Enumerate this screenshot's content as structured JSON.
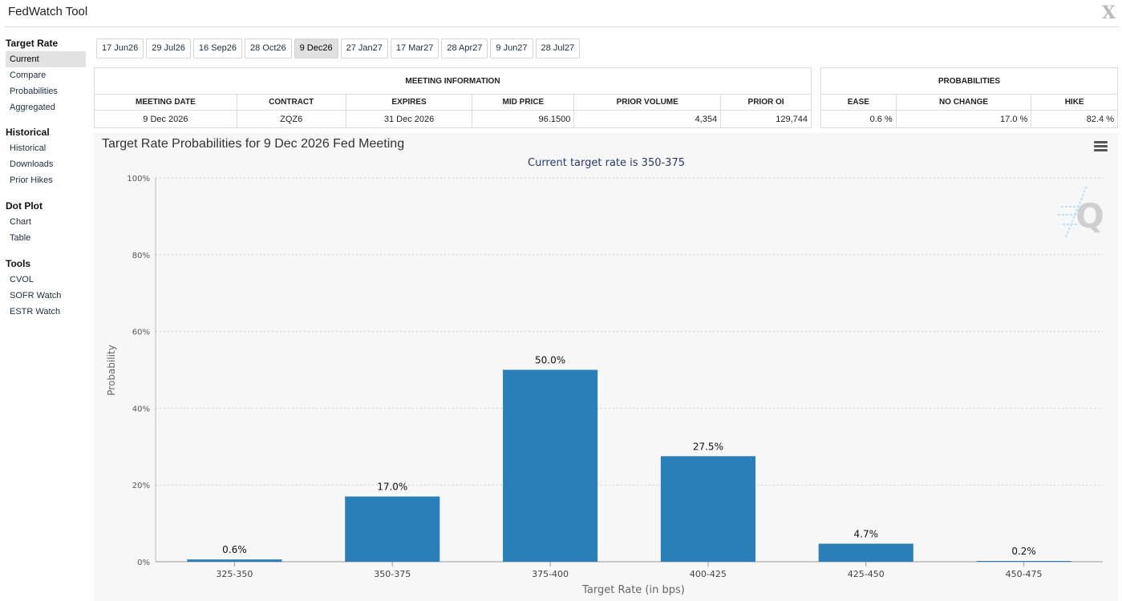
{
  "app": {
    "title": "FedWatch Tool",
    "close_label": "X"
  },
  "sidebar": {
    "sections": [
      {
        "heading": "Target Rate",
        "items": [
          {
            "label": "Current",
            "active": true
          },
          {
            "label": "Compare"
          },
          {
            "label": "Probabilities"
          },
          {
            "label": "Aggregated"
          }
        ]
      },
      {
        "heading": "Historical",
        "items": [
          {
            "label": "Historical"
          },
          {
            "label": "Downloads"
          },
          {
            "label": "Prior Hikes"
          }
        ]
      },
      {
        "heading": "Dot Plot",
        "items": [
          {
            "label": "Chart"
          },
          {
            "label": "Table"
          }
        ]
      },
      {
        "heading": "Tools",
        "items": [
          {
            "label": "CVOL"
          },
          {
            "label": "SOFR Watch"
          },
          {
            "label": "ESTR Watch"
          }
        ]
      }
    ]
  },
  "tabs": [
    {
      "label": "17 Jun26"
    },
    {
      "label": "29 Jul26"
    },
    {
      "label": "16 Sep26"
    },
    {
      "label": "28 Oct26"
    },
    {
      "label": "9 Dec26",
      "active": true
    },
    {
      "label": "27 Jan27"
    },
    {
      "label": "17 Mar27"
    },
    {
      "label": "28 Apr27"
    },
    {
      "label": "9 Jun27"
    },
    {
      "label": "28 Jul27"
    }
  ],
  "meeting_info": {
    "heading": "MEETING INFORMATION",
    "columns": [
      "MEETING DATE",
      "CONTRACT",
      "EXPIRES",
      "MID PRICE",
      "PRIOR VOLUME",
      "PRIOR OI"
    ],
    "row": [
      "9 Dec 2026",
      "ZQZ6",
      "31 Dec 2026",
      "96.1500",
      "4,354",
      "129,744"
    ]
  },
  "probabilities": {
    "heading": "PROBABILITIES",
    "columns": [
      "EASE",
      "NO CHANGE",
      "HIKE"
    ],
    "row": [
      "0.6 %",
      "17.0 %",
      "82.4 %"
    ]
  },
  "chart": {
    "title": "Target Rate Probabilities for 9 Dec 2026 Fed Meeting",
    "subtitle": "Current target rate is 350-375"
  },
  "chart_data": {
    "type": "bar",
    "title": "Target Rate Probabilities for 9 Dec 2026 Fed Meeting",
    "subtitle": "Current target rate is 350-375",
    "xlabel": "Target Rate (in bps)",
    "ylabel": "Probability",
    "categories": [
      "325-350",
      "350-375",
      "375-400",
      "400-425",
      "425-450",
      "450-475"
    ],
    "values": [
      0.6,
      17.0,
      50.0,
      27.5,
      4.7,
      0.2
    ],
    "data_labels": [
      "0.6%",
      "17.0%",
      "50.0%",
      "27.5%",
      "4.7%",
      "0.2%"
    ],
    "ylim": [
      0,
      100
    ],
    "yticks": [
      0,
      20,
      40,
      60,
      80,
      100
    ],
    "ytick_labels": [
      "0%",
      "20%",
      "40%",
      "60%",
      "80%",
      "100%"
    ],
    "grid": true,
    "color": "#2b7fb8",
    "legend": "none"
  }
}
